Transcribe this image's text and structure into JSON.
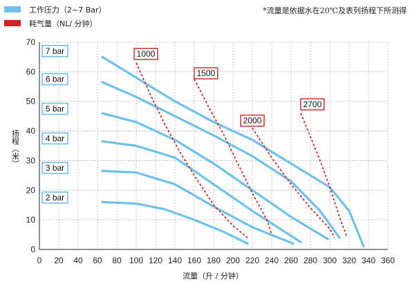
{
  "legend": [
    {
      "label": "工作压力（2~7 Bar）",
      "color": "#6ec1ea",
      "style": "solid"
    },
    {
      "label": "耗气量（NL/ 分钟）",
      "color": "#cc2222",
      "style": "dashed"
    }
  ],
  "note": "*流量是依据水在20℃及表列扬程下所测得",
  "chart_data": {
    "type": "line",
    "xlabel": "流量（升 / 分钟）",
    "ylabel": "扬程（米）",
    "xlim": [
      0,
      360
    ],
    "ylim": [
      0,
      70
    ],
    "xticks": [
      0,
      20,
      40,
      60,
      80,
      100,
      120,
      140,
      160,
      180,
      200,
      220,
      240,
      260,
      280,
      300,
      320,
      340,
      360
    ],
    "yticks": [
      0,
      10,
      20,
      30,
      40,
      50,
      60,
      70
    ],
    "grid": true,
    "series": [
      {
        "name": "7 bar",
        "group": "pressure",
        "points": [
          [
            65,
            65
          ],
          [
            100,
            58
          ],
          [
            140,
            50
          ],
          [
            180,
            43
          ],
          [
            220,
            37
          ],
          [
            260,
            29
          ],
          [
            300,
            21
          ],
          [
            320,
            13
          ],
          [
            335,
            1
          ]
        ]
      },
      {
        "name": "6 bar",
        "group": "pressure",
        "points": [
          [
            65,
            56.5
          ],
          [
            100,
            51.5
          ],
          [
            140,
            45
          ],
          [
            180,
            38.5
          ],
          [
            220,
            31.5
          ],
          [
            260,
            23
          ],
          [
            290,
            13
          ],
          [
            310,
            4
          ]
        ]
      },
      {
        "name": "5 bar",
        "group": "pressure",
        "points": [
          [
            65,
            46
          ],
          [
            100,
            43
          ],
          [
            140,
            37
          ],
          [
            180,
            29
          ],
          [
            220,
            20
          ],
          [
            260,
            11
          ],
          [
            298,
            3.5
          ]
        ]
      },
      {
        "name": "4 bar",
        "group": "pressure",
        "points": [
          [
            65,
            36.5
          ],
          [
            100,
            35
          ],
          [
            140,
            31
          ],
          [
            180,
            22
          ],
          [
            220,
            13
          ],
          [
            270,
            2.5
          ]
        ]
      },
      {
        "name": "3 bar",
        "group": "pressure",
        "points": [
          [
            65,
            26.5
          ],
          [
            100,
            26
          ],
          [
            140,
            22
          ],
          [
            180,
            14.5
          ],
          [
            220,
            7.5
          ],
          [
            262,
            2
          ]
        ]
      },
      {
        "name": "2 bar",
        "group": "pressure",
        "points": [
          [
            65,
            16
          ],
          [
            100,
            15.5
          ],
          [
            130,
            13.5
          ],
          [
            160,
            10
          ],
          [
            190,
            6
          ],
          [
            215,
            2
          ]
        ]
      },
      {
        "name": "1000",
        "group": "air",
        "points": [
          [
            100,
            63
          ],
          [
            115,
            52
          ],
          [
            130,
            42
          ],
          [
            145,
            33
          ],
          [
            160,
            25
          ],
          [
            180,
            15
          ],
          [
            200,
            8
          ],
          [
            215,
            4
          ]
        ]
      },
      {
        "name": "1500",
        "group": "air",
        "points": [
          [
            160,
            57.5
          ],
          [
            175,
            48
          ],
          [
            190,
            39
          ],
          [
            205,
            29
          ],
          [
            220,
            19
          ],
          [
            235,
            10
          ],
          [
            240,
            5
          ]
        ]
      },
      {
        "name": "2000",
        "group": "air",
        "points": [
          [
            220,
            41
          ],
          [
            240,
            31
          ],
          [
            260,
            22
          ],
          [
            280,
            14
          ],
          [
            300,
            7
          ],
          [
            305,
            4
          ]
        ]
      },
      {
        "name": "2700",
        "group": "air",
        "points": [
          [
            270,
            46
          ],
          [
            280,
            38
          ],
          [
            290,
            30
          ],
          [
            300,
            21
          ],
          [
            310,
            11
          ],
          [
            318,
            4
          ]
        ]
      }
    ],
    "curve_labels": [
      {
        "text": "7 bar",
        "y": 67
      },
      {
        "text": "6 bar",
        "y": 57.5
      },
      {
        "text": "5 bar",
        "y": 47.5
      },
      {
        "text": "4 bar",
        "y": 37.5
      },
      {
        "text": "3 bar",
        "y": 27.5
      },
      {
        "text": "2 bar",
        "y": 17.5
      }
    ],
    "air_labels": [
      {
        "text": "1000",
        "x": 110,
        "y": 66
      },
      {
        "text": "1500",
        "x": 172,
        "y": 59.5
      },
      {
        "text": "2000",
        "x": 220,
        "y": 43.5
      },
      {
        "text": "2700",
        "x": 282,
        "y": 49
      }
    ]
  }
}
